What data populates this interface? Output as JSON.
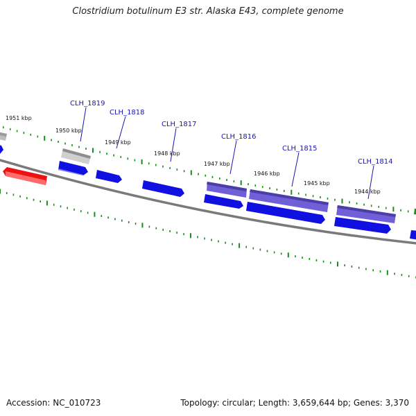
{
  "title": "Clostridium botulinum E3 str. Alaska E43, complete genome",
  "accession": "Accession: NC_010723",
  "summary": "Topology: circular; Length: 3,659,644 bp; Genes: 3,370",
  "colors": {
    "backbone": "#7a7a7a",
    "tick": "#1a8c1a",
    "cds_forward": "#1010e0",
    "cds_reverse": "#6a5ed0",
    "rna": "#ee1111",
    "pseudo": "#bdbdbd",
    "gene_label": "#1515b0"
  },
  "tick_labels": [
    "1951 kbp",
    "1950 kbp",
    "1949 kbp",
    "1948 kbp",
    "1947 kbp",
    "1946 kbp",
    "1945 kbp",
    "1944 kbp"
  ],
  "gene_labels": [
    "CLH_1819",
    "CLH_1818",
    "CLH_1817",
    "CLH_1816",
    "CLH_1815",
    "CLH_1814"
  ]
}
